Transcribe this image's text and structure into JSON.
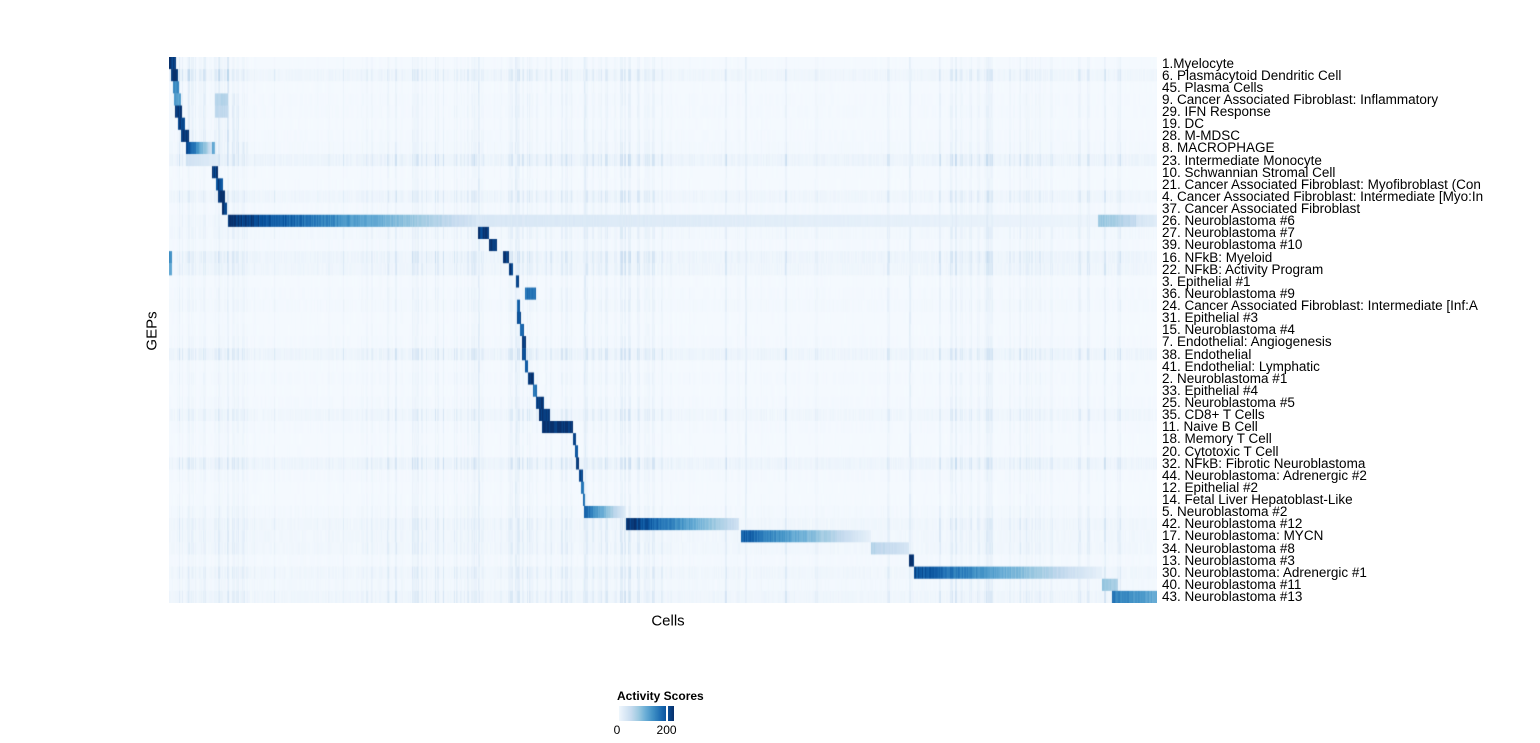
{
  "chart_data": {
    "type": "heatmap",
    "xlabel": "Cells",
    "ylabel": "GEPs",
    "grid": false,
    "colormap": [
      "#f7fbff",
      "#deebf7",
      "#c6dbef",
      "#9ecae1",
      "#6baed6",
      "#4292c6",
      "#2171b5",
      "#08519c",
      "#08306b"
    ],
    "value_range": [
      0,
      230
    ],
    "legend": {
      "title": "Activity Scores",
      "tick_labels": [
        "0",
        "200"
      ],
      "tick_values": [
        0,
        200
      ],
      "position": "bottom"
    },
    "global_lines": [
      {
        "x": 0.3125,
        "v": 24
      },
      {
        "x": 0.3505,
        "v": 20
      },
      {
        "x": 0.4205,
        "v": 22
      },
      {
        "x": 0.5835,
        "v": 18
      },
      {
        "x": 0.7485,
        "v": 20
      }
    ],
    "rows": [
      {
        "label": "1.Myelocyte",
        "band": 8,
        "blocks": [
          [
            0.0,
            0.007,
            220,
            220
          ]
        ],
        "boosts": [
          [
            0,
            0.06,
            3
          ]
        ]
      },
      {
        "label": "6. Plasmacytoid Dendritic Cell",
        "band": 22,
        "blocks": [
          [
            0.002,
            0.009,
            225,
            225
          ]
        ],
        "boosts": [
          [
            0,
            0.06,
            2.5
          ]
        ]
      },
      {
        "label": "45. Plasma Cells",
        "band": 8,
        "blocks": [
          [
            0.004,
            0.01,
            150,
            150
          ]
        ],
        "boosts": [
          [
            0,
            0.06,
            3
          ]
        ]
      },
      {
        "label": "9. Cancer Associated Fibroblast: Inflammatory",
        "band": 10,
        "blocks": [
          [
            0.005,
            0.012,
            130,
            130
          ],
          [
            0.046,
            0.059,
            70,
            70
          ]
        ],
        "boosts": [
          [
            0,
            0.07,
            2.5
          ]
        ]
      },
      {
        "label": "29. IFN Response",
        "band": 10,
        "blocks": [
          [
            0.006,
            0.013,
            220,
            220
          ],
          [
            0.046,
            0.059,
            60,
            60
          ]
        ],
        "boosts": [
          [
            0,
            0.07,
            2.5
          ]
        ]
      },
      {
        "label": "19. DC",
        "band": 8,
        "blocks": [
          [
            0.009,
            0.016,
            220,
            220
          ]
        ],
        "boosts": [
          [
            0,
            0.07,
            3
          ]
        ]
      },
      {
        "label": "28. M-MDSC",
        "band": 10,
        "blocks": [
          [
            0.012,
            0.02,
            230,
            230
          ]
        ],
        "boosts": [
          [
            0,
            0.07,
            3
          ]
        ]
      },
      {
        "label": "8. MACROPHAGE",
        "band": 12,
        "blocks": [
          [
            0.017,
            0.033,
            230,
            110
          ],
          [
            0.033,
            0.047,
            110,
            15
          ],
          [
            0.0435,
            0.0465,
            120,
            120
          ]
        ],
        "boosts": [
          [
            0,
            0.08,
            2.5
          ]
        ]
      },
      {
        "label": "23. Intermediate Monocyte",
        "band": 28,
        "blocks": [
          [
            0.017,
            0.05,
            45,
            25
          ]
        ],
        "boosts": []
      },
      {
        "label": "10. Schwannian Stromal Cell",
        "band": 8,
        "blocks": [
          [
            0.0435,
            0.0495,
            220,
            220
          ]
        ],
        "boosts": []
      },
      {
        "label": "21. Cancer Associated Fibroblast: Myofibroblast (Con",
        "band": 8,
        "blocks": [
          [
            0.047,
            0.054,
            210,
            210
          ]
        ],
        "boosts": []
      },
      {
        "label": "4. Cancer Associated Fibroblast: Intermediate [Myo:In",
        "band": 22,
        "blocks": [
          [
            0.0495,
            0.056,
            225,
            225
          ]
        ],
        "boosts": []
      },
      {
        "label": "37. Cancer Associated Fibroblast",
        "band": 10,
        "blocks": [
          [
            0.053,
            0.0585,
            220,
            220
          ]
        ],
        "boosts": []
      },
      {
        "label": "26. Neuroblastoma #6",
        "band": 15,
        "blocks": [
          [
            0.0595,
            0.31,
            230,
            40
          ],
          [
            0.31,
            0.94,
            35,
            12
          ],
          [
            0.94,
            0.978,
            90,
            60
          ],
          [
            0.978,
            1.0,
            40,
            25
          ]
        ],
        "boosts": []
      },
      {
        "label": "27. Neuroblastoma #7",
        "band": 15,
        "blocks": [
          [
            0.312,
            0.323,
            220,
            220
          ]
        ],
        "boosts": []
      },
      {
        "label": "39. Neuroblastoma #10",
        "band": 10,
        "blocks": [
          [
            0.323,
            0.331,
            225,
            225
          ]
        ],
        "boosts": []
      },
      {
        "label": "16. NFkB: Myeloid",
        "band": 26,
        "blocks": [
          [
            0.0,
            0.003,
            150,
            150
          ],
          [
            0.338,
            0.3435,
            225,
            225
          ]
        ],
        "boosts": []
      },
      {
        "label": "22. NFkB: Activity Program",
        "band": 22,
        "blocks": [
          [
            0.0,
            0.003,
            120,
            120
          ],
          [
            0.3435,
            0.348,
            225,
            225
          ]
        ],
        "boosts": []
      },
      {
        "label": "3. Epithelial #1",
        "band": 8,
        "blocks": [
          [
            0.3505,
            0.354,
            220,
            220
          ]
        ],
        "boosts": []
      },
      {
        "label": "36. Neuroblastoma #9",
        "band": 10,
        "blocks": [
          [
            0.36,
            0.371,
            170,
            170
          ]
        ],
        "boosts": []
      },
      {
        "label": "24. Cancer Associated Fibroblast: Intermediate [Inf:A",
        "band": 12,
        "blocks": [
          [
            0.3515,
            0.355,
            190,
            190
          ]
        ],
        "boosts": []
      },
      {
        "label": "31. Epithelial #3",
        "band": 8,
        "blocks": [
          [
            0.352,
            0.356,
            200,
            200
          ]
        ],
        "boosts": []
      },
      {
        "label": "15. Neuroblastoma #4",
        "band": 8,
        "blocks": [
          [
            0.355,
            0.359,
            190,
            190
          ]
        ],
        "boosts": []
      },
      {
        "label": "7. Endothelial: Angiogenesis",
        "band": 10,
        "blocks": [
          [
            0.3565,
            0.3605,
            225,
            225
          ]
        ],
        "boosts": []
      },
      {
        "label": "38. Endothelial",
        "band": 26,
        "blocks": [
          [
            0.357,
            0.3605,
            200,
            200
          ]
        ],
        "boosts": []
      },
      {
        "label": "41. Endothelial: Lymphatic",
        "band": 8,
        "blocks": [
          [
            0.3595,
            0.3625,
            190,
            190
          ]
        ],
        "boosts": []
      },
      {
        "label": "2. Neuroblastoma #1",
        "band": 10,
        "blocks": [
          [
            0.3625,
            0.369,
            230,
            230
          ]
        ],
        "boosts": []
      },
      {
        "label": "33. Epithelial #4",
        "band": 8,
        "blocks": [
          [
            0.368,
            0.372,
            170,
            170
          ]
        ],
        "boosts": []
      },
      {
        "label": "25. Neuroblastoma #5",
        "band": 10,
        "blocks": [
          [
            0.371,
            0.379,
            220,
            220
          ]
        ],
        "boosts": []
      },
      {
        "label": "35. CD8+ T Cells",
        "band": 20,
        "blocks": [
          [
            0.3735,
            0.3855,
            230,
            230
          ]
        ],
        "boosts": []
      },
      {
        "label": "11. Naive B Cell",
        "band": 10,
        "blocks": [
          [
            0.3775,
            0.408,
            230,
            230
          ]
        ],
        "boosts": []
      },
      {
        "label": "18. Memory T Cell",
        "band": 8,
        "blocks": [
          [
            0.408,
            0.4115,
            210,
            210
          ]
        ],
        "boosts": []
      },
      {
        "label": "20. Cytotoxic T Cell",
        "band": 8,
        "blocks": [
          [
            0.41,
            0.4135,
            200,
            200
          ]
        ],
        "boosts": []
      },
      {
        "label": "32. NFkB: Fibrotic Neuroblastoma",
        "band": 26,
        "blocks": [
          [
            0.4115,
            0.4145,
            220,
            220
          ]
        ],
        "boosts": []
      },
      {
        "label": "44. Neuroblastoma: Adrenergic #2",
        "band": 10,
        "blocks": [
          [
            0.414,
            0.4185,
            210,
            210
          ]
        ],
        "boosts": []
      },
      {
        "label": "12. Epithelial #2",
        "band": 8,
        "blocks": [
          [
            0.417,
            0.4195,
            160,
            160
          ]
        ],
        "boosts": []
      },
      {
        "label": "14. Fetal Liver Hepatoblast-Like",
        "band": 8,
        "blocks": [
          [
            0.4185,
            0.4205,
            170,
            170
          ]
        ],
        "boosts": []
      },
      {
        "label": "5. Neuroblastoma #2",
        "band": 12,
        "blocks": [
          [
            0.4195,
            0.462,
            185,
            25
          ]
        ],
        "boosts": []
      },
      {
        "label": "42. Neuroblastoma #12",
        "band": 20,
        "blocks": [
          [
            0.462,
            0.576,
            230,
            45
          ]
        ],
        "boosts": []
      },
      {
        "label": "17. Neuroblastoma: MYCN",
        "band": 18,
        "blocks": [
          [
            0.578,
            0.71,
            195,
            18
          ]
        ],
        "boosts": []
      },
      {
        "label": "34. Neuroblastoma #8",
        "band": 18,
        "blocks": [
          [
            0.71,
            0.748,
            70,
            40
          ]
        ],
        "boosts": []
      },
      {
        "label": "13. Neuroblastoma #3",
        "band": 10,
        "blocks": [
          [
            0.748,
            0.754,
            230,
            230
          ]
        ],
        "boosts": []
      },
      {
        "label": "30. Neuroblastoma: Adrenergic #1",
        "band": 20,
        "blocks": [
          [
            0.754,
            0.944,
            205,
            18
          ]
        ],
        "boosts": []
      },
      {
        "label": "40. Neuroblastoma #11",
        "band": 14,
        "blocks": [
          [
            0.944,
            0.96,
            95,
            75
          ]
        ],
        "boosts": []
      },
      {
        "label": "43. Neuroblastoma #13",
        "band": 22,
        "blocks": [
          [
            0.954,
            1.0,
            165,
            115
          ]
        ],
        "boosts": []
      }
    ]
  }
}
